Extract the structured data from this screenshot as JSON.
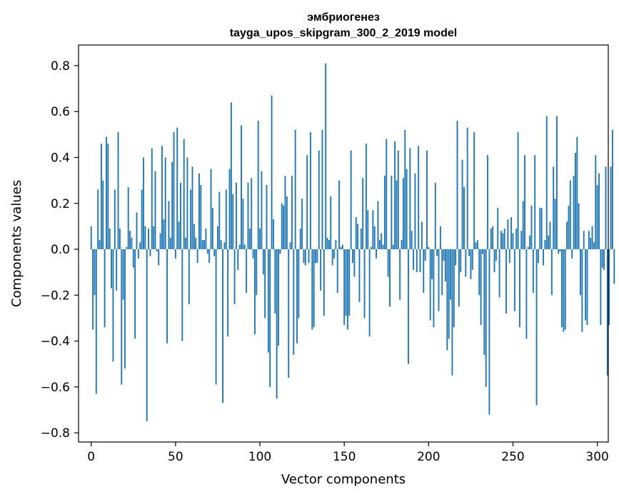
{
  "chart_data": {
    "type": "bar",
    "title": "эмбриогенез",
    "subtitle": "tayga_upos_skipgram_300_2_2019 model",
    "xlabel": "Vector components",
    "ylabel": "Components values",
    "xlim": [
      -7.5,
      306.5
    ],
    "ylim": [
      -0.84,
      0.89
    ],
    "xticks": [
      0,
      50,
      100,
      150,
      200,
      250,
      300
    ],
    "yticks": [
      -0.8,
      -0.6,
      -0.4,
      -0.2,
      0.0,
      0.2,
      0.4,
      0.6,
      0.8
    ],
    "ytick_labels": [
      "−0.8",
      "−0.6",
      "−0.4",
      "−0.2",
      "0.0",
      "0.2",
      "0.4",
      "0.6",
      "0.8"
    ],
    "bar_color": "#1f77b4",
    "values": [
      0.1,
      -0.35,
      -0.2,
      -0.63,
      0.26,
      0.04,
      0.46,
      0.3,
      -0.34,
      0.49,
      0.46,
      0.09,
      -0.17,
      -0.49,
      0.26,
      -0.18,
      0.51,
      0.09,
      -0.59,
      -0.22,
      -0.52,
      0.01,
      0.27,
      0.08,
      0.05,
      -0.08,
      -0.39,
      0.16,
      -0.04,
      0.03,
      0.26,
      0.4,
      0.1,
      -0.75,
      0.09,
      -0.03,
      0.44,
      0.1,
      0.34,
      -0.01,
      -0.07,
      0.07,
      0.45,
      0.13,
      0.4,
      -0.41,
      0.21,
      0.05,
      0.38,
      0.51,
      -0.04,
      0.53,
      0.12,
      0.29,
      -0.4,
      0.48,
      0.05,
      0.4,
      -0.24,
      0.26,
      0.36,
      0.11,
      0.05,
      -0.06,
      0.33,
      0.28,
      0.04,
      0.04,
      0.09,
      -0.02,
      -0.06,
      0.35,
      0.18,
      -0.03,
      -0.59,
      0.1,
      0.25,
      0.04,
      -0.67,
      0.03,
      0.26,
      -0.38,
      0.35,
      0.64,
      0.24,
      -0.24,
      0.29,
      -0.09,
      0.02,
      0.54,
      0.22,
      0.02,
      -0.19,
      0.29,
      0.09,
      0.31,
      -0.04,
      -0.37,
      -0.2,
      0.56,
      0.09,
      0.34,
      -0.11,
      -0.3,
      0.28,
      -0.45,
      -0.6,
      0.67,
      0.13,
      -0.28,
      -0.65,
      -0.42,
      -0.02,
      0.2,
      0.19,
      0.32,
      0.23,
      -0.56,
      0.03,
      0.32,
      -0.46,
      0.52,
      -0.41,
      -0.3,
      0.09,
      0.22,
      -0.06,
      -0.07,
      0.41,
      -0.06,
      0.51,
      -0.35,
      -0.34,
      -0.06,
      -0.06,
      0.43,
      -0.18,
      0.52,
      -0.29,
      0.81,
      0.05,
      0.04,
      0.23,
      -0.07,
      -0.04,
      0.04,
      -0.19,
      0.3,
      0.01,
      0.02,
      -0.33,
      -0.29,
      -0.35,
      -0.29,
      0.43,
      -0.06,
      -0.12,
      0.14,
      0.11,
      -0.23,
      0.09,
      0.31,
      -0.3,
      0.46,
      0.17,
      -0.38,
      0.01,
      0.17,
      0.1,
      -0.04,
      0.21,
      0.04,
      0.07,
      0.02,
      0.32,
      0.48,
      -0.12,
      -0.25,
      0.32,
      0.02,
      0.47,
      0.3,
      0.43,
      -0.22,
      0.04,
      0.31,
      0.52,
      0.35,
      -0.5,
      0.44,
      0.08,
      -0.09,
      0.33,
      -0.1,
      0.45,
      -0.1,
      0.12,
      -0.19,
      -0.05,
      0.43,
      0.01,
      -0.31,
      -0.13,
      -0.34,
      0.29,
      -0.03,
      -0.27,
      0.1,
      -0.2,
      -0.05,
      -0.14,
      -0.44,
      -0.39,
      -0.22,
      -0.55,
      -0.34,
      -0.07,
      0.56,
      -0.25,
      -0.1,
      0.39,
      0.27,
      -0.12,
      0.53,
      -0.03,
      -0.13,
      -0.09,
      0.51,
      0.03,
      0.04,
      -0.2,
      -0.33,
      -0.02,
      -0.46,
      -0.6,
      0.41,
      -0.72,
      0.09,
      0.1,
      -0.1,
      -0.05,
      0.18,
      -0.21,
      0.08,
      0.07,
      0.09,
      -0.28,
      0.13,
      -0.06,
      0.14,
      0.07,
      -0.27,
      0.09,
      0.51,
      -0.34,
      0.08,
      0.21,
      0.41,
      -0.39,
      0.01,
      0.06,
      0.19,
      -0.19,
      0.41,
      -0.68,
      -0.06,
      0.18,
      0.18,
      -0.07,
      0.04,
      0.58,
      0.06,
      0.12,
      -0.2,
      0.36,
      0.22,
      0.58,
      -0.02,
      -0.01,
      -0.34,
      -0.36,
      -0.35,
      0.12,
      0.19,
      0.3,
      -0.04,
      0.32,
      0.42,
      0.49,
      0.2,
      -0.2,
      -0.36,
      0.08,
      -0.31,
      -0.33,
      0.08,
      0.05,
      0.1,
      0.03,
      0.41,
      0.28,
      0.33,
      -0.33,
      -0.08,
      -0.09,
      0.36,
      -0.55,
      -0.33,
      0.36,
      0.52,
      -0.15
    ]
  }
}
